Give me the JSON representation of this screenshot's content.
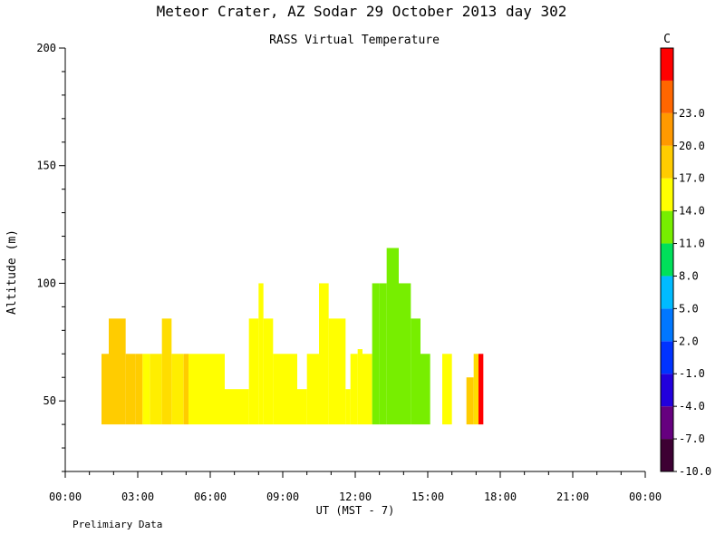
{
  "chart_data": {
    "type": "heatmap",
    "title": "Meteor Crater, AZ  Sodar  29 October 2013  day 302",
    "subtitle": "RASS Virtual Temperature",
    "xlabel": "UT  (MST - 7)",
    "ylabel": "Altitude (m)",
    "note": "Prelimiary Data",
    "x_ticks": [
      "00:00",
      "03:00",
      "06:00",
      "09:00",
      "12:00",
      "15:00",
      "18:00",
      "21:00",
      "00:00"
    ],
    "xlim_hours": [
      0,
      24
    ],
    "y_ticks": [
      50,
      100,
      150,
      200
    ],
    "ylim": [
      20,
      200
    ],
    "colorbar": {
      "unit": "C",
      "labels": [
        "23.0",
        "20.0",
        "17.0",
        "14.0",
        "11.0",
        "8.0",
        "5.0",
        "2.0",
        "-1.0",
        "-4.0",
        "-7.0",
        "-10.0"
      ],
      "colors": [
        "#3d0033",
        "#66007f",
        "#2200dd",
        "#0033ff",
        "#0077ff",
        "#00bbff",
        "#00e05a",
        "#77ee00",
        "#ffff00",
        "#ffcc00",
        "#ff9900",
        "#ff6600",
        "#ff0000"
      ]
    },
    "segments": [
      {
        "t0": 1.5,
        "t1": 1.8,
        "top": 70,
        "color": "#ffcc00"
      },
      {
        "t0": 1.8,
        "t1": 2.5,
        "top": 85,
        "color": "#ffcc00"
      },
      {
        "t0": 2.5,
        "t1": 2.9,
        "top": 70,
        "color": "#ffcc00"
      },
      {
        "t0": 2.9,
        "t1": 3.2,
        "top": 70,
        "color": "#ffcc00"
      },
      {
        "t0": 3.2,
        "t1": 3.5,
        "top": 70,
        "color": "#ffff00"
      },
      {
        "t0": 3.5,
        "t1": 4.0,
        "top": 70,
        "color": "#ffee00"
      },
      {
        "t0": 4.0,
        "t1": 4.4,
        "top": 85,
        "color": "#ffdd00"
      },
      {
        "t0": 4.4,
        "t1": 4.9,
        "top": 70,
        "color": "#ffee00"
      },
      {
        "t0": 4.9,
        "t1": 5.1,
        "top": 70,
        "color": "#ffcc00"
      },
      {
        "t0": 5.1,
        "t1": 6.6,
        "top": 70,
        "color": "#ffff00"
      },
      {
        "t0": 6.6,
        "t1": 7.6,
        "top": 55,
        "color": "#ffff00"
      },
      {
        "t0": 7.6,
        "t1": 8.0,
        "top": 85,
        "color": "#ffff00"
      },
      {
        "t0": 8.0,
        "t1": 8.2,
        "top": 100,
        "color": "#ffff00"
      },
      {
        "t0": 8.2,
        "t1": 8.6,
        "top": 85,
        "color": "#ffff00"
      },
      {
        "t0": 8.6,
        "t1": 9.6,
        "top": 70,
        "color": "#ffff00"
      },
      {
        "t0": 9.6,
        "t1": 10.0,
        "top": 55,
        "color": "#ffff00"
      },
      {
        "t0": 10.0,
        "t1": 10.5,
        "top": 70,
        "color": "#ffff00"
      },
      {
        "t0": 10.5,
        "t1": 10.9,
        "top": 100,
        "color": "#ffff00"
      },
      {
        "t0": 10.9,
        "t1": 11.6,
        "top": 85,
        "color": "#ffff00"
      },
      {
        "t0": 11.6,
        "t1": 11.8,
        "top": 55,
        "color": "#ffff00"
      },
      {
        "t0": 11.8,
        "t1": 12.1,
        "top": 70,
        "color": "#ffff00"
      },
      {
        "t0": 12.1,
        "t1": 12.3,
        "top": 72,
        "color": "#ffff00"
      },
      {
        "t0": 12.3,
        "t1": 12.7,
        "top": 70,
        "color": "#ffff00"
      },
      {
        "t0": 12.7,
        "t1": 13.0,
        "top": 100,
        "color": "#77ee00"
      },
      {
        "t0": 13.0,
        "t1": 13.3,
        "top": 100,
        "color": "#77ee00"
      },
      {
        "t0": 13.3,
        "t1": 13.8,
        "top": 115,
        "color": "#77ee00"
      },
      {
        "t0": 13.8,
        "t1": 14.3,
        "top": 100,
        "color": "#77ee00"
      },
      {
        "t0": 14.3,
        "t1": 14.7,
        "top": 85,
        "color": "#77ee00"
      },
      {
        "t0": 14.7,
        "t1": 15.1,
        "top": 70,
        "color": "#77ee00"
      },
      {
        "t0": 15.6,
        "t1": 16.0,
        "top": 70,
        "color": "#ffff00"
      },
      {
        "t0": 16.6,
        "t1": 16.9,
        "top": 60,
        "color": "#ffcc00"
      },
      {
        "t0": 16.9,
        "t1": 17.1,
        "top": 70,
        "color": "#ffdd00"
      },
      {
        "t0": 17.1,
        "t1": 17.3,
        "top": 70,
        "color": "#ff0000"
      }
    ]
  }
}
